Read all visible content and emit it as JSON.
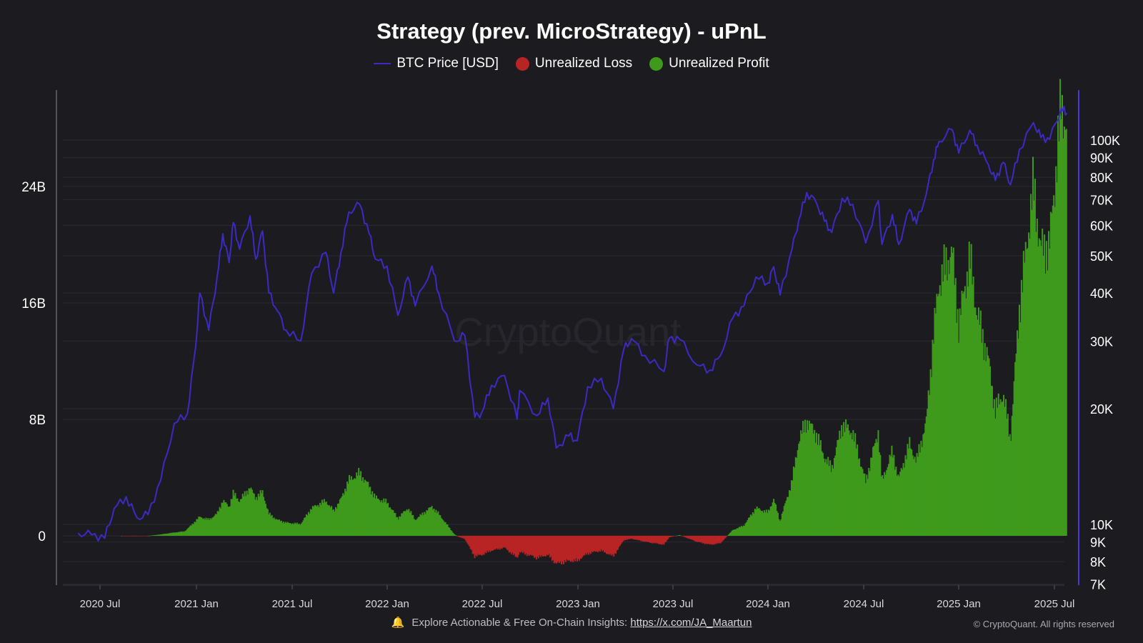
{
  "title": "Strategy (prev. MicroStrategy) - uPnL",
  "legend": {
    "price_label": "BTC Price [USD]",
    "loss_label": "Unrealized Loss",
    "profit_label": "Unrealized Profit"
  },
  "footer": {
    "text": "Explore Actionable & Free On-Chain Insights:",
    "link": "https://x.com/JA_Maartun",
    "copyright": "© CryptoQuant. All rights reserved",
    "watermark": "CryptoQuant"
  },
  "colors": {
    "background": "#1b1b20",
    "price": "#3d2ac4",
    "loss": "#b82424",
    "profit": "#3f9a1c",
    "grid": "#2a2a31"
  },
  "chart_data": {
    "type": "bar+line",
    "x_ticks": [
      "2020 Jul",
      "2021 Jan",
      "2021 Jul",
      "2022 Jan",
      "2022 Jul",
      "2023 Jan",
      "2023 Jul",
      "2024 Jan",
      "2024 Jul",
      "2025 Jan",
      "2025 Jul"
    ],
    "x_range": [
      "2020-05-15",
      "2025-08-01"
    ],
    "y_left": {
      "ticks": [
        "24B",
        "16B",
        "8B",
        "0"
      ],
      "tick_values": [
        24000000000,
        16000000000,
        8000000000,
        0
      ],
      "range": [
        -3500000000,
        30500000000
      ]
    },
    "y_right": {
      "scale": "log",
      "ticks": [
        "100K",
        "90K",
        "80K",
        "70K",
        "60K",
        "50K",
        "40K",
        "30K",
        "20K",
        "10K",
        "9K",
        "8K",
        "7K"
      ],
      "tick_values": [
        100000,
        90000,
        80000,
        70000,
        60000,
        50000,
        40000,
        30000,
        20000,
        10000,
        9000,
        8000,
        7000
      ],
      "range": [
        7000,
        130000
      ]
    },
    "grid": true,
    "legend_position": "top-center",
    "series": [
      {
        "name": "BTC Price [USD]",
        "kind": "line",
        "axis": "right",
        "points": [
          [
            "2020-05-20",
            9500
          ],
          [
            "2020-06-15",
            9400
          ],
          [
            "2020-07-10",
            9200
          ],
          [
            "2020-07-28",
            11000
          ],
          [
            "2020-08-20",
            11800
          ],
          [
            "2020-09-10",
            10400
          ],
          [
            "2020-10-01",
            10600
          ],
          [
            "2020-10-25",
            13000
          ],
          [
            "2020-11-20",
            18300
          ],
          [
            "2020-12-15",
            19400
          ],
          [
            "2020-12-31",
            29000
          ],
          [
            "2021-01-08",
            40000
          ],
          [
            "2021-01-25",
            32000
          ],
          [
            "2021-02-10",
            44000
          ],
          [
            "2021-02-21",
            57000
          ],
          [
            "2021-03-05",
            48000
          ],
          [
            "2021-03-13",
            61000
          ],
          [
            "2021-03-25",
            52000
          ],
          [
            "2021-04-14",
            63500
          ],
          [
            "2021-04-25",
            49000
          ],
          [
            "2021-05-08",
            58000
          ],
          [
            "2021-05-20",
            40000
          ],
          [
            "2021-06-05",
            36000
          ],
          [
            "2021-06-22",
            32000
          ],
          [
            "2021-07-20",
            30000
          ],
          [
            "2021-08-10",
            45000
          ],
          [
            "2021-09-06",
            51000
          ],
          [
            "2021-09-21",
            40000
          ],
          [
            "2021-10-05",
            51000
          ],
          [
            "2021-10-20",
            65000
          ],
          [
            "2021-11-10",
            68000
          ],
          [
            "2021-11-28",
            57000
          ],
          [
            "2021-12-10",
            49000
          ],
          [
            "2022-01-01",
            47000
          ],
          [
            "2022-01-22",
            35000
          ],
          [
            "2022-02-10",
            44000
          ],
          [
            "2022-02-24",
            37000
          ],
          [
            "2022-03-28",
            47000
          ],
          [
            "2022-04-10",
            40000
          ],
          [
            "2022-05-10",
            30000
          ],
          [
            "2022-05-30",
            31000
          ],
          [
            "2022-06-18",
            19000
          ],
          [
            "2022-07-01",
            19500
          ],
          [
            "2022-07-20",
            23000
          ],
          [
            "2022-08-14",
            24400
          ],
          [
            "2022-09-07",
            18800
          ],
          [
            "2022-09-12",
            22300
          ],
          [
            "2022-10-15",
            19200
          ],
          [
            "2022-11-05",
            21300
          ],
          [
            "2022-11-21",
            15800
          ],
          [
            "2022-12-15",
            17000
          ],
          [
            "2022-12-31",
            16500
          ],
          [
            "2023-01-20",
            22800
          ],
          [
            "2023-02-15",
            24000
          ],
          [
            "2023-03-10",
            20000
          ],
          [
            "2023-03-30",
            28500
          ],
          [
            "2023-04-14",
            30400
          ],
          [
            "2023-05-10",
            27500
          ],
          [
            "2023-06-15",
            25000
          ],
          [
            "2023-06-25",
            30500
          ],
          [
            "2023-07-15",
            30300
          ],
          [
            "2023-08-17",
            26000
          ],
          [
            "2023-09-11",
            25200
          ],
          [
            "2023-10-01",
            27500
          ],
          [
            "2023-10-25",
            34500
          ],
          [
            "2023-11-15",
            37000
          ],
          [
            "2023-12-08",
            44000
          ],
          [
            "2023-12-31",
            42500
          ],
          [
            "2024-01-11",
            46800
          ],
          [
            "2024-01-23",
            39500
          ],
          [
            "2024-02-15",
            52000
          ],
          [
            "2024-02-28",
            62000
          ],
          [
            "2024-03-14",
            73000
          ],
          [
            "2024-04-01",
            69000
          ],
          [
            "2024-04-17",
            61500
          ],
          [
            "2024-05-01",
            57500
          ],
          [
            "2024-05-21",
            70500
          ],
          [
            "2024-06-10",
            68000
          ],
          [
            "2024-07-05",
            54000
          ],
          [
            "2024-07-29",
            69500
          ],
          [
            "2024-08-05",
            53500
          ],
          [
            "2024-08-25",
            64000
          ],
          [
            "2024-09-06",
            53500
          ],
          [
            "2024-09-27",
            66000
          ],
          [
            "2024-10-10",
            60500
          ],
          [
            "2024-10-29",
            72500
          ],
          [
            "2024-11-12",
            89000
          ],
          [
            "2024-11-22",
            99000
          ],
          [
            "2024-12-17",
            106500
          ],
          [
            "2024-12-30",
            92500
          ],
          [
            "2025-01-20",
            106000
          ],
          [
            "2025-02-03",
            97000
          ],
          [
            "2025-02-25",
            86000
          ],
          [
            "2025-03-10",
            78500
          ],
          [
            "2025-03-25",
            87500
          ],
          [
            "2025-04-08",
            76500
          ],
          [
            "2025-04-25",
            94500
          ],
          [
            "2025-05-22",
            111000
          ],
          [
            "2025-06-05",
            101500
          ],
          [
            "2025-06-22",
            100500
          ],
          [
            "2025-07-14",
            121000
          ],
          [
            "2025-07-25",
            117500
          ]
        ]
      },
      {
        "name": "uPnL",
        "kind": "bar",
        "axis": "left",
        "note": "positive values drawn green (Unrealized Profit), negative values drawn red (Unrealized Loss)",
        "points": [
          [
            "2020-08-11",
            0
          ],
          [
            "2020-09-01",
            -30000000
          ],
          [
            "2020-09-25",
            -20000000
          ],
          [
            "2020-10-15",
            50000000
          ],
          [
            "2020-11-05",
            150000000
          ],
          [
            "2020-11-25",
            250000000
          ],
          [
            "2020-12-10",
            300000000
          ],
          [
            "2020-12-22",
            700000000
          ],
          [
            "2021-01-08",
            1300000000
          ],
          [
            "2021-01-25",
            1100000000
          ],
          [
            "2021-02-10",
            1500000000
          ],
          [
            "2021-02-21",
            2400000000
          ],
          [
            "2021-03-05",
            2000000000
          ],
          [
            "2021-03-13",
            2900000000
          ],
          [
            "2021-03-25",
            2400000000
          ],
          [
            "2021-04-14",
            3300000000
          ],
          [
            "2021-04-25",
            2600000000
          ],
          [
            "2021-05-08",
            3000000000
          ],
          [
            "2021-05-20",
            1500000000
          ],
          [
            "2021-06-05",
            1100000000
          ],
          [
            "2021-06-22",
            900000000
          ],
          [
            "2021-07-20",
            800000000
          ],
          [
            "2021-08-10",
            1900000000
          ],
          [
            "2021-09-06",
            2400000000
          ],
          [
            "2021-09-21",
            1700000000
          ],
          [
            "2021-10-05",
            2500000000
          ],
          [
            "2021-10-20",
            3800000000
          ],
          [
            "2021-11-10",
            4300000000
          ],
          [
            "2021-11-28",
            3400000000
          ],
          [
            "2021-12-10",
            2600000000
          ],
          [
            "2022-01-01",
            2300000000
          ],
          [
            "2022-01-22",
            1200000000
          ],
          [
            "2022-02-10",
            1900000000
          ],
          [
            "2022-02-24",
            1100000000
          ],
          [
            "2022-03-28",
            2000000000
          ],
          [
            "2022-04-10",
            1500000000
          ],
          [
            "2022-05-10",
            100000000
          ],
          [
            "2022-05-20",
            -100000000
          ],
          [
            "2022-05-30",
            -200000000
          ],
          [
            "2022-06-18",
            -1400000000
          ],
          [
            "2022-07-01",
            -1300000000
          ],
          [
            "2022-07-20",
            -1000000000
          ],
          [
            "2022-08-14",
            -800000000
          ],
          [
            "2022-09-07",
            -1500000000
          ],
          [
            "2022-09-12",
            -1100000000
          ],
          [
            "2022-10-15",
            -1500000000
          ],
          [
            "2022-11-05",
            -1300000000
          ],
          [
            "2022-11-21",
            -1900000000
          ],
          [
            "2022-12-15",
            -1700000000
          ],
          [
            "2022-12-31",
            -1700000000
          ],
          [
            "2023-01-20",
            -1200000000
          ],
          [
            "2023-02-15",
            -1000000000
          ],
          [
            "2023-03-10",
            -1400000000
          ],
          [
            "2023-03-30",
            -300000000
          ],
          [
            "2023-04-14",
            -200000000
          ],
          [
            "2023-05-10",
            -400000000
          ],
          [
            "2023-06-15",
            -600000000
          ],
          [
            "2023-06-25",
            -100000000
          ],
          [
            "2023-07-15",
            50000000
          ],
          [
            "2023-08-17",
            -400000000
          ],
          [
            "2023-09-11",
            -600000000
          ],
          [
            "2023-10-01",
            -500000000
          ],
          [
            "2023-10-25",
            400000000
          ],
          [
            "2023-11-15",
            700000000
          ],
          [
            "2023-12-08",
            1900000000
          ],
          [
            "2023-12-31",
            1600000000
          ],
          [
            "2024-01-11",
            2500000000
          ],
          [
            "2024-01-23",
            1000000000
          ],
          [
            "2024-02-15",
            3700000000
          ],
          [
            "2024-02-28",
            6500000000
          ],
          [
            "2024-03-14",
            7900000000
          ],
          [
            "2024-04-01",
            7000000000
          ],
          [
            "2024-04-17",
            5400000000
          ],
          [
            "2024-05-01",
            4600000000
          ],
          [
            "2024-05-21",
            7600000000
          ],
          [
            "2024-06-10",
            7100000000
          ],
          [
            "2024-07-05",
            3700000000
          ],
          [
            "2024-07-29",
            7200000000
          ],
          [
            "2024-08-05",
            3700000000
          ],
          [
            "2024-08-25",
            5800000000
          ],
          [
            "2024-09-06",
            3900000000
          ],
          [
            "2024-09-27",
            6300000000
          ],
          [
            "2024-10-10",
            5100000000
          ],
          [
            "2024-10-29",
            7800000000
          ],
          [
            "2024-11-12",
            13800000000
          ],
          [
            "2024-11-22",
            17300000000
          ],
          [
            "2024-12-17",
            19600000000
          ],
          [
            "2024-12-30",
            14500000000
          ],
          [
            "2025-01-20",
            19100000000
          ],
          [
            "2025-02-03",
            15300000000
          ],
          [
            "2025-02-25",
            12000000000
          ],
          [
            "2025-03-10",
            8600000000
          ],
          [
            "2025-03-25",
            9800000000
          ],
          [
            "2025-04-08",
            6600000000
          ],
          [
            "2025-04-25",
            15600000000
          ],
          [
            "2025-05-22",
            24000000000
          ],
          [
            "2025-06-05",
            19600000000
          ],
          [
            "2025-06-22",
            20000000000
          ],
          [
            "2025-07-14",
            29500000000
          ],
          [
            "2025-07-25",
            28300000000
          ]
        ]
      }
    ]
  }
}
